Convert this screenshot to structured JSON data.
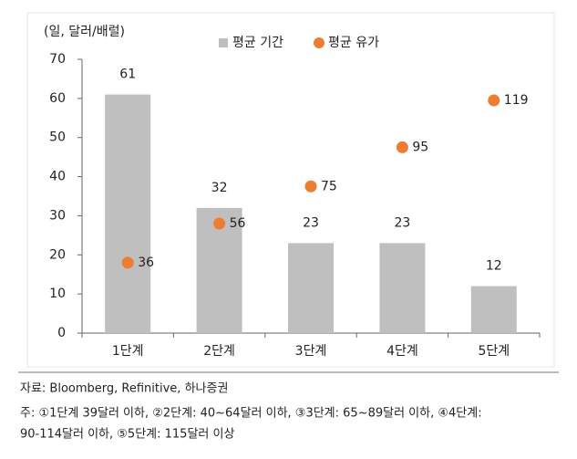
{
  "chart_data": {
    "type": "bar",
    "title": "(일, 달러/배럴)",
    "categories": [
      "1단계",
      "2단계",
      "3단계",
      "4단계",
      "5단계"
    ],
    "series": [
      {
        "name": "평균 기간",
        "color": "#bfbfbf",
        "values": [
          61,
          32,
          23,
          23,
          12
        ]
      },
      {
        "name": "평균 유가",
        "color": "#ed7d31",
        "values": [
          36,
          56,
          75,
          95,
          119
        ],
        "axis": "y2"
      }
    ],
    "ylim": [
      0,
      70
    ],
    "yticks": [
      0,
      10,
      20,
      30,
      40,
      50,
      60,
      70
    ],
    "y2lim": [
      0,
      140
    ],
    "grid": false,
    "source": "자료: Bloomberg, Refinitive, 하나증권",
    "note": [
      "주: ①1단계 39달러 이하, ②2단계: 40~64달러 이하, ③3단계: 65~89달러 이하, ④4단계:",
      "90-114달러 이하, ⑤5단계: 115달러 이상"
    ]
  }
}
